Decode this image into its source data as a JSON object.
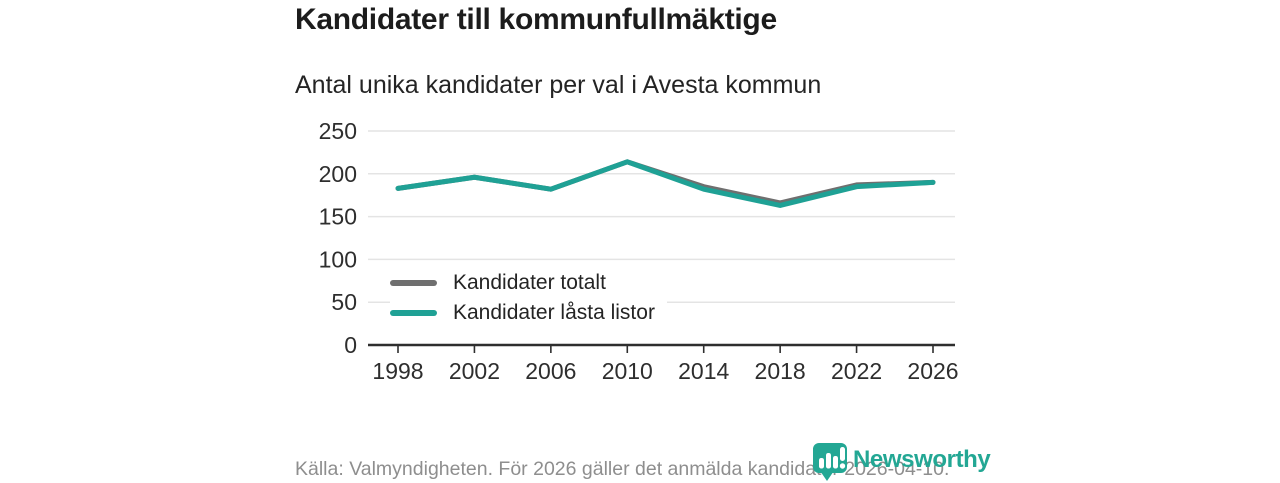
{
  "header": {
    "title": "Kandidater till kommunfullmäktige",
    "subtitle": "Antal unika kandidater per val i Avesta kommun"
  },
  "chart_data": {
    "type": "line",
    "x": [
      1998,
      2002,
      2006,
      2010,
      2014,
      2018,
      2022,
      2026
    ],
    "xticks": [
      "1998",
      "2002",
      "2006",
      "2010",
      "2014",
      "2018",
      "2022",
      "2026"
    ],
    "yticks": [
      0,
      50,
      100,
      150,
      200,
      250
    ],
    "ylim": [
      0,
      250
    ],
    "grid": true,
    "legend_position": "inside-bottom-left",
    "series": [
      {
        "name": "Kandidater totalt",
        "color": "#6f6f6f",
        "values": [
          183,
          196,
          182,
          214,
          185,
          166,
          187,
          190
        ]
      },
      {
        "name": "Kandidater låsta listor",
        "color": "#1fa195",
        "values": [
          183,
          196,
          182,
          214,
          182,
          163,
          185,
          190
        ]
      }
    ],
    "colors": {
      "gridline": "#e4e4e4",
      "axis": "#2e2e2e"
    }
  },
  "footer": {
    "source": "Källa: Valmyndigheten. För 2026 gäller det anmälda kandidater 2026-04-10.",
    "brand": "Newsworthy",
    "brand_color": "#23a794"
  }
}
